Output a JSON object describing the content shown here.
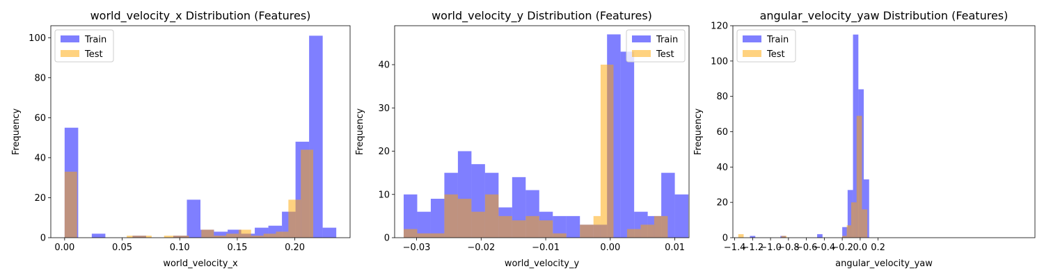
{
  "colors": {
    "train": "#0000ff",
    "test": "#ffa500"
  },
  "chart_data": [
    {
      "type": "histogram",
      "title": "world_velocity_x Distribution (Features)",
      "xlabel": "world_velocity_x",
      "ylabel": "Frequency",
      "xlim": [
        -0.012,
        0.248
      ],
      "ylim": [
        0,
        106
      ],
      "xticks": [
        0.0,
        0.05,
        0.1,
        0.15,
        0.2
      ],
      "xtick_labels": [
        "0.00",
        "0.05",
        "0.10",
        "0.15",
        "0.20"
      ],
      "yticks": [
        0,
        20,
        40,
        60,
        80,
        100
      ],
      "ytick_labels": [
        "0",
        "20",
        "40",
        "60",
        "80",
        "100"
      ],
      "legend": {
        "position": "upper-left",
        "entries": [
          "Train",
          "Test"
        ]
      },
      "series": [
        {
          "name": "Train",
          "bins": [
            [
              0.0,
              0.0118,
              55
            ],
            [
              0.0236,
              0.0354,
              2
            ],
            [
              0.059,
              0.0708,
              1
            ],
            [
              0.0944,
              0.1062,
              1
            ],
            [
              0.1062,
              0.118,
              19
            ],
            [
              0.118,
              0.1298,
              4
            ],
            [
              0.1298,
              0.1416,
              3
            ],
            [
              0.1416,
              0.1534,
              4
            ],
            [
              0.1534,
              0.1652,
              2
            ],
            [
              0.1652,
              0.177,
              5
            ],
            [
              0.177,
              0.1888,
              6
            ],
            [
              0.1888,
              0.2006,
              13
            ],
            [
              0.2006,
              0.2124,
              48
            ],
            [
              0.2124,
              0.2242,
              101
            ],
            [
              0.2242,
              0.236,
              5
            ]
          ]
        },
        {
          "name": "Test",
          "bins": [
            [
              0.0,
              0.0108,
              33
            ],
            [
              0.054,
              0.0648,
              1
            ],
            [
              0.0648,
              0.0756,
              1
            ],
            [
              0.0864,
              0.0972,
              1
            ],
            [
              0.0972,
              0.108,
              1
            ],
            [
              0.108,
              0.1188,
              0
            ],
            [
              0.1188,
              0.1296,
              4
            ],
            [
              0.1296,
              0.1404,
              1
            ],
            [
              0.1404,
              0.1512,
              2
            ],
            [
              0.1512,
              0.162,
              4
            ],
            [
              0.162,
              0.1728,
              1
            ],
            [
              0.1728,
              0.1836,
              2
            ],
            [
              0.1836,
              0.1944,
              3
            ],
            [
              0.1944,
              0.2052,
              19
            ],
            [
              0.2052,
              0.216,
              44
            ]
          ]
        }
      ]
    },
    {
      "type": "histogram",
      "title": "world_velocity_y Distribution (Features)",
      "xlabel": "world_velocity_y",
      "ylabel": "Frequency",
      "xlim": [
        -0.0334,
        0.0122
      ],
      "ylim": [
        0,
        49
      ],
      "xticks": [
        -0.03,
        -0.02,
        -0.01,
        0.0,
        0.01
      ],
      "xtick_labels": [
        "−0.03",
        "−0.02",
        "−0.01",
        "0.00",
        "0.01"
      ],
      "yticks": [
        0,
        10,
        20,
        30,
        40
      ],
      "ytick_labels": [
        "0",
        "10",
        "20",
        "30",
        "40"
      ],
      "legend": {
        "position": "upper-right",
        "entries": [
          "Train",
          "Test"
        ]
      },
      "series": [
        {
          "name": "Train",
          "bins": [
            [
              -0.032,
              -0.0299,
              10
            ],
            [
              -0.0299,
              -0.0278,
              6
            ],
            [
              -0.0278,
              -0.0257,
              9
            ],
            [
              -0.0257,
              -0.0236,
              15
            ],
            [
              -0.0236,
              -0.0215,
              20
            ],
            [
              -0.0215,
              -0.0194,
              17
            ],
            [
              -0.0194,
              -0.0173,
              15
            ],
            [
              -0.0173,
              -0.0152,
              7
            ],
            [
              -0.0152,
              -0.0131,
              14
            ],
            [
              -0.0131,
              -0.011,
              11
            ],
            [
              -0.011,
              -0.0089,
              6
            ],
            [
              -0.0089,
              -0.0068,
              5
            ],
            [
              -0.0068,
              -0.0047,
              5
            ],
            [
              -0.0047,
              -0.0026,
              3
            ],
            [
              -0.0026,
              -0.0005,
              3
            ],
            [
              -0.0005,
              0.0016,
              47
            ],
            [
              0.0016,
              0.0037,
              43
            ],
            [
              0.0037,
              0.0058,
              6
            ],
            [
              0.0058,
              0.0079,
              5
            ],
            [
              0.0079,
              0.01,
              15
            ],
            [
              0.01,
              0.0121,
              10
            ]
          ]
        },
        {
          "name": "Test",
          "bins": [
            [
              -0.032,
              -0.0299,
              2
            ],
            [
              -0.0299,
              -0.0278,
              1
            ],
            [
              -0.0278,
              -0.0257,
              1
            ],
            [
              -0.0257,
              -0.0236,
              10
            ],
            [
              -0.0236,
              -0.0215,
              9
            ],
            [
              -0.0215,
              -0.0194,
              6
            ],
            [
              -0.0194,
              -0.0173,
              10
            ],
            [
              -0.0173,
              -0.0152,
              5
            ],
            [
              -0.0152,
              -0.0131,
              4
            ],
            [
              -0.0131,
              -0.011,
              5
            ],
            [
              -0.011,
              -0.0089,
              4
            ],
            [
              -0.0089,
              -0.0068,
              1
            ],
            [
              -0.0047,
              -0.0026,
              3
            ],
            [
              -0.0026,
              -0.0015,
              5
            ],
            [
              -0.0015,
              0.0005,
              40
            ],
            [
              0.0026,
              0.0047,
              2
            ],
            [
              0.0047,
              0.0068,
              3
            ],
            [
              0.0068,
              0.0089,
              5
            ]
          ]
        }
      ]
    },
    {
      "type": "histogram",
      "title": "angular_velocity_yaw Distribution (Features)",
      "xlabel": "angular_velocity_yaw",
      "ylabel": "Frequency",
      "xlim": [
        -1.42,
        1.95
      ],
      "ylim": [
        0,
        120
      ],
      "xticks": [
        -1.4,
        -1.2,
        -1.0,
        -0.8,
        -0.6,
        -0.4,
        -0.2,
        0.0,
        0.2
      ],
      "xtick_labels": [
        "−1.4",
        "−1.2",
        "−1.0",
        "−0.8",
        "−0.6",
        "−0.4",
        "−0.2",
        "0.0",
        "0.2"
      ],
      "yticks": [
        0,
        20,
        40,
        60,
        80,
        100,
        120
      ],
      "ytick_labels": [
        "0",
        "20",
        "40",
        "60",
        "80",
        "100",
        "120"
      ],
      "legend": {
        "position": "upper-left",
        "entries": [
          "Train",
          "Test"
        ]
      },
      "series": [
        {
          "name": "Train",
          "bins": [
            [
              -1.23,
              -1.17,
              1
            ],
            [
              -0.89,
              -0.83,
              1
            ],
            [
              -0.48,
              -0.42,
              2
            ],
            [
              -0.2,
              -0.14,
              6
            ],
            [
              -0.14,
              -0.08,
              27
            ],
            [
              -0.08,
              -0.02,
              115
            ],
            [
              -0.02,
              0.04,
              84
            ],
            [
              0.04,
              0.1,
              33
            ]
          ]
        },
        {
          "name": "Test",
          "bins": [
            [
              -1.36,
              -1.3,
              2
            ],
            [
              -0.88,
              -0.82,
              1
            ],
            [
              -0.2,
              -0.15,
              1
            ],
            [
              -0.15,
              -0.1,
              7
            ],
            [
              -0.1,
              -0.04,
              20
            ],
            [
              -0.04,
              0.02,
              69
            ],
            [
              0.02,
              0.08,
              16
            ]
          ]
        }
      ]
    }
  ]
}
